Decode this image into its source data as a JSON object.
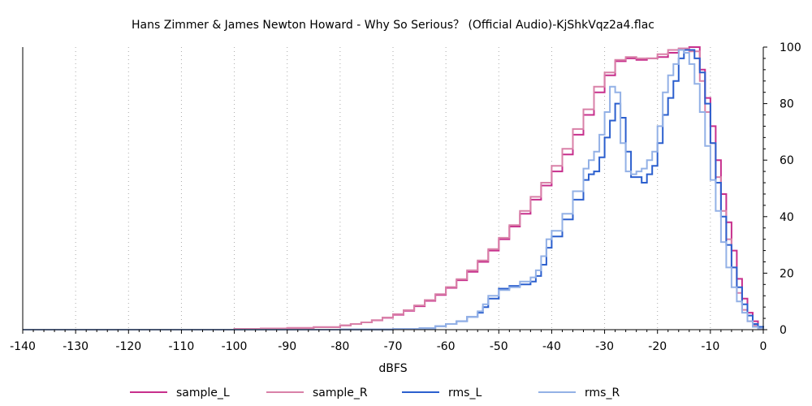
{
  "chart_data": {
    "type": "line",
    "title": "Hans Zimmer & James Newton Howard - Why So Serious？ (Official Audio)-KjShkVqz2a4.flac",
    "xlabel": "dBFS",
    "ylabel": "",
    "xlim": [
      -140,
      0
    ],
    "ylim": [
      0,
      100
    ],
    "x_ticks": [
      -140,
      -130,
      -120,
      -110,
      -100,
      -90,
      -80,
      -70,
      -60,
      -50,
      -40,
      -30,
      -20,
      -10,
      0
    ],
    "y_ticks": [
      0,
      20,
      40,
      60,
      80,
      100
    ],
    "step": true,
    "grid": "vertical-dotted",
    "legend_position": "bottom",
    "series": [
      {
        "name": "sample_L",
        "color": "#c72f8c",
        "x": [
          -140,
          -100,
          -95,
          -90,
          -85,
          -80,
          -78,
          -76,
          -74,
          -72,
          -70,
          -68,
          -66,
          -64,
          -62,
          -60,
          -58,
          -56,
          -54,
          -52,
          -50,
          -48,
          -46,
          -44,
          -42,
          -40,
          -38,
          -36,
          -34,
          -32,
          -30,
          -28,
          -26,
          -24,
          -22,
          -20,
          -18,
          -16,
          -14,
          -12,
          -11,
          -10,
          -9,
          -8,
          -7,
          -6,
          -5,
          -4,
          -3,
          -2,
          -1,
          0
        ],
        "values": [
          0,
          0.3,
          0.4,
          0.6,
          0.9,
          1.5,
          2,
          2.6,
          3.3,
          4.2,
          5.3,
          6.7,
          8.3,
          10.2,
          12.3,
          14.8,
          17.5,
          20.5,
          24,
          28,
          32,
          36.5,
          41,
          46,
          51,
          56,
          62,
          69,
          76,
          84,
          90,
          95,
          96,
          95.5,
          96,
          96.5,
          98,
          99.5,
          100,
          92,
          82,
          72,
          60,
          48,
          38,
          28,
          18,
          11,
          6,
          3,
          1,
          0
        ]
      },
      {
        "name": "sample_R",
        "color": "#d981a8",
        "x": [
          -140,
          -100,
          -95,
          -90,
          -85,
          -80,
          -78,
          -76,
          -74,
          -72,
          -70,
          -68,
          -66,
          -64,
          -62,
          -60,
          -58,
          -56,
          -54,
          -52,
          -50,
          -48,
          -46,
          -44,
          -42,
          -40,
          -38,
          -36,
          -34,
          -32,
          -30,
          -28,
          -26,
          -24,
          -22,
          -20,
          -18,
          -16,
          -14,
          -12,
          -11,
          -10,
          -9,
          -8,
          -7,
          -6,
          -5,
          -4,
          -3,
          -2,
          -1,
          0
        ],
        "values": [
          0,
          0.3,
          0.4,
          0.6,
          0.9,
          1.5,
          2,
          2.6,
          3.4,
          4.3,
          5.5,
          6.9,
          8.6,
          10.5,
          12.6,
          15.1,
          17.9,
          21,
          24.5,
          28.5,
          32.5,
          37,
          42,
          47,
          52,
          58,
          64,
          71,
          78,
          86,
          91,
          95.5,
          96.5,
          96,
          96,
          97.5,
          99,
          99.5,
          98.5,
          88,
          77,
          66,
          54,
          42,
          32,
          22,
          13,
          7,
          3,
          1.5,
          0.5,
          0
        ]
      },
      {
        "name": "rms_L",
        "color": "#2b5fce",
        "x": [
          -140,
          -90,
          -80,
          -70,
          -65,
          -62,
          -60,
          -58,
          -56,
          -54,
          -53,
          -52,
          -50,
          -48,
          -46,
          -44,
          -43,
          -42,
          -41,
          -40,
          -38,
          -36,
          -34,
          -33,
          -32,
          -31,
          -30,
          -29,
          -28,
          -27,
          -26,
          -25,
          -24,
          -23,
          -22,
          -21,
          -20,
          -19,
          -18,
          -17,
          -16,
          -15,
          -14,
          -13,
          -12,
          -11,
          -10,
          -9,
          -8,
          -7,
          -6,
          -5,
          -4,
          -3,
          -2,
          -1,
          0
        ],
        "values": [
          0,
          0,
          0.1,
          0.2,
          0.5,
          1.2,
          2,
          3,
          4.5,
          6,
          8,
          11,
          14.5,
          15.5,
          16,
          17,
          19,
          23,
          29,
          33,
          39,
          46,
          53,
          55,
          56,
          61,
          68,
          74,
          80,
          75,
          63,
          54,
          54,
          52,
          55,
          58,
          66,
          76,
          82,
          88,
          96,
          99,
          99,
          96,
          91,
          80,
          66,
          52,
          40,
          30,
          22,
          15,
          9,
          5,
          2,
          1,
          0
        ]
      },
      {
        "name": "rms_R",
        "color": "#93b1e6",
        "x": [
          -140,
          -90,
          -80,
          -70,
          -65,
          -62,
          -60,
          -58,
          -56,
          -54,
          -53,
          -52,
          -50,
          -48,
          -46,
          -44,
          -43,
          -42,
          -41,
          -40,
          -38,
          -36,
          -34,
          -33,
          -32,
          -31,
          -30,
          -29,
          -28,
          -27,
          -26,
          -25,
          -24,
          -23,
          -22,
          -21,
          -20,
          -19,
          -18,
          -17,
          -16,
          -15,
          -14,
          -13,
          -12,
          -11,
          -10,
          -9,
          -8,
          -7,
          -6,
          -5,
          -4,
          -3,
          -2,
          -1,
          0
        ],
        "values": [
          0,
          0,
          0.1,
          0.2,
          0.5,
          1.2,
          2,
          3,
          4.5,
          6.5,
          9,
          12,
          14,
          15,
          17,
          18.5,
          21,
          26,
          32,
          35,
          41,
          49,
          57,
          60,
          63,
          69,
          77,
          86,
          84,
          66,
          56,
          55,
          56,
          57,
          60,
          63,
          72,
          84,
          90,
          94,
          99,
          98,
          94,
          87,
          77,
          65,
          53,
          42,
          31,
          22,
          15,
          10,
          6,
          3,
          1,
          0.5,
          0
        ]
      }
    ]
  }
}
